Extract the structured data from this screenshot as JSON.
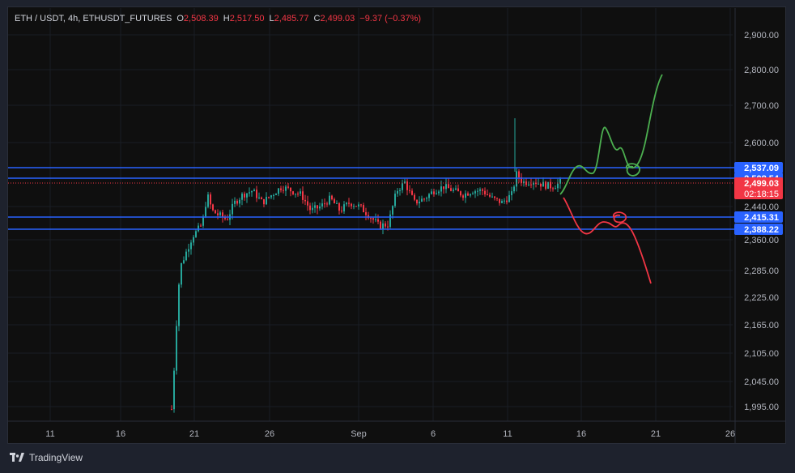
{
  "header": {
    "symbol": "ETH / USDT, 4h, ETHUSDT_FUTURES",
    "o_label": "O",
    "o_value": "2,508.39",
    "h_label": "H",
    "h_value": "2,517.50",
    "l_label": "L",
    "l_value": "2,485.77",
    "c_label": "C",
    "c_value": "2,499.03",
    "change": "−9.37 (−0.37%)"
  },
  "footer": {
    "brand": "TradingView"
  },
  "colors": {
    "up": "#26a69a",
    "down": "#f23645",
    "level_line": "#2962ff",
    "bull_path": "#4caf50",
    "bear_path": "#f23645",
    "background": "#0f0f0f"
  },
  "chart_data": {
    "type": "candlestick",
    "timeframe": "4h",
    "x_ticks": [
      "11",
      "16",
      "21",
      "26",
      "Sep",
      "6",
      "11",
      "16",
      "21",
      "26"
    ],
    "y_ticks": [
      "1,995.00",
      "2,045.00",
      "2,105.00",
      "2,165.00",
      "2,225.00",
      "2,285.00",
      "2,360.00",
      "2,440.00",
      "2,600.00",
      "2,700.00",
      "2,800.00",
      "2,900.00"
    ],
    "horizontal_levels": [
      {
        "label": "2,537.09",
        "value": 2537.09,
        "color": "#2962ff"
      },
      {
        "label": "2,508.54",
        "value": 2508.54,
        "color": "#2962ff"
      },
      {
        "label": "2,415.31",
        "value": 2415.31,
        "color": "#2962ff"
      },
      {
        "label": "2,388.22",
        "value": 2388.22,
        "color": "#2962ff"
      }
    ],
    "last_price": {
      "label": "2,499.03",
      "value": 2499.03,
      "countdown": "02:18:15"
    },
    "scenarios": [
      {
        "name": "bullish",
        "color": "#4caf50",
        "end_value": 2780
      },
      {
        "name": "bearish",
        "color": "#f23645",
        "end_value": 2255
      }
    ]
  }
}
